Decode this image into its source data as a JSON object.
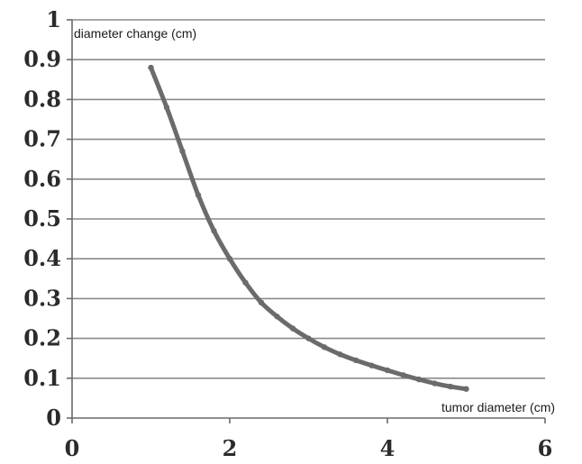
{
  "chart_data": {
    "type": "line",
    "title": "",
    "xlabel": "tumor diameter (cm)",
    "ylabel": "diameter change (cm)",
    "xlim": [
      0,
      6
    ],
    "ylim": [
      0,
      1
    ],
    "xticks": [
      0,
      2,
      4,
      6
    ],
    "xtick_labels": [
      "0",
      "2",
      "4",
      "6"
    ],
    "yticks": [
      0,
      0.1,
      0.2,
      0.3,
      0.4,
      0.5,
      0.6,
      0.7,
      0.8,
      0.9,
      1
    ],
    "ytick_labels": [
      "0",
      "0.1",
      "0.2",
      "0.3",
      "0.4",
      "0.5",
      "0.6",
      "0.7",
      "0.8",
      "0.9",
      "1"
    ],
    "grid": "horizontal",
    "legend": "none",
    "colors": {
      "series": "#6b6b6b",
      "grid": "#8a8a8a",
      "text": "#2b2b2b"
    },
    "series": [
      {
        "x": [
          1.0,
          1.2,
          1.4,
          1.6,
          1.8,
          2.0,
          2.2,
          2.4,
          2.6,
          2.8,
          3.0,
          3.2,
          3.4,
          3.6,
          3.8,
          4.0,
          4.2,
          4.4,
          4.6,
          4.8,
          5.0
        ],
        "values": [
          0.88,
          0.78,
          0.67,
          0.56,
          0.47,
          0.4,
          0.34,
          0.29,
          0.255,
          0.225,
          0.2,
          0.178,
          0.16,
          0.145,
          0.132,
          0.12,
          0.108,
          0.097,
          0.087,
          0.079,
          0.073
        ]
      }
    ]
  }
}
